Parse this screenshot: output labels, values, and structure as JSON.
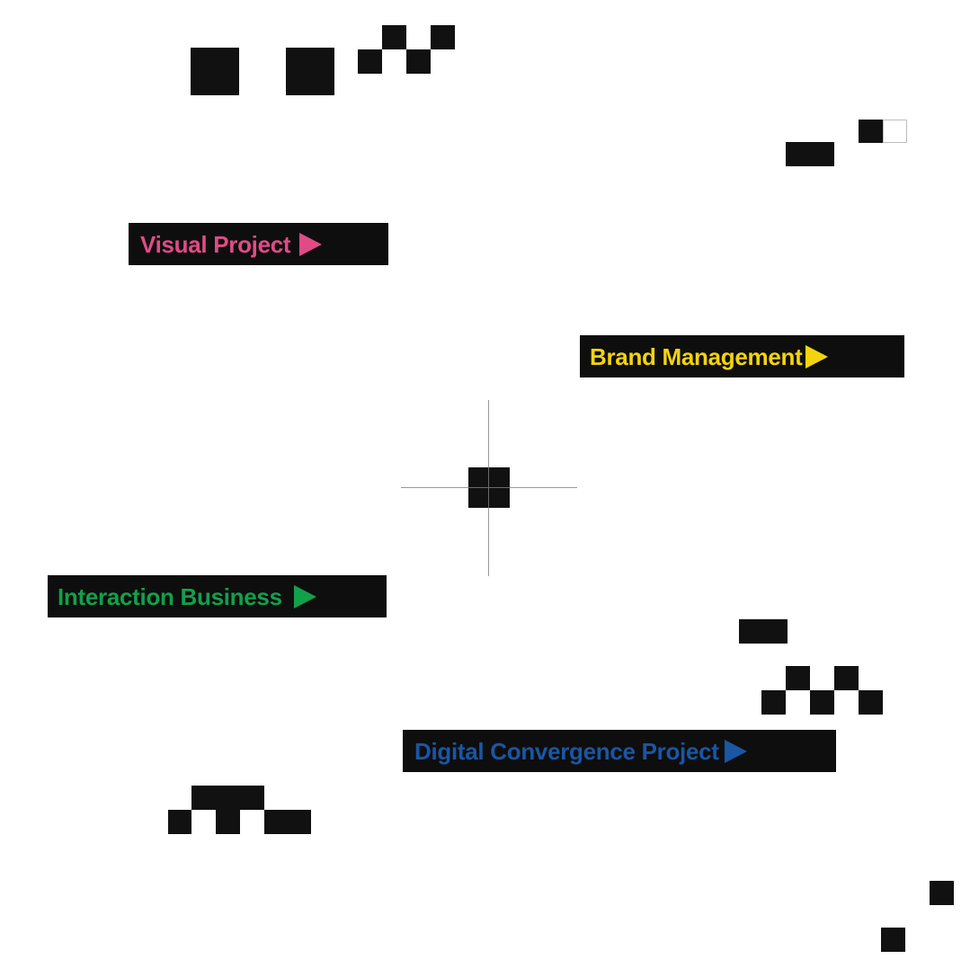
{
  "nav": {
    "visual_project": {
      "label": "Visual Project",
      "color": "#e04b86",
      "icon": "play-triangle-icon"
    },
    "brand_management": {
      "label": "Brand Management",
      "color": "#f3d40c",
      "icon": "play-triangle-icon"
    },
    "interaction_business": {
      "label": "Interaction Business",
      "color": "#12a04b",
      "icon": "play-triangle-icon"
    },
    "digital_convergence_project": {
      "label": "Digital Convergence Project",
      "color": "#1a56a4",
      "icon": "play-triangle-icon"
    }
  },
  "colors": {
    "block": "#111111",
    "background": "#ffffff",
    "crosshair": "#9a9a9a"
  }
}
